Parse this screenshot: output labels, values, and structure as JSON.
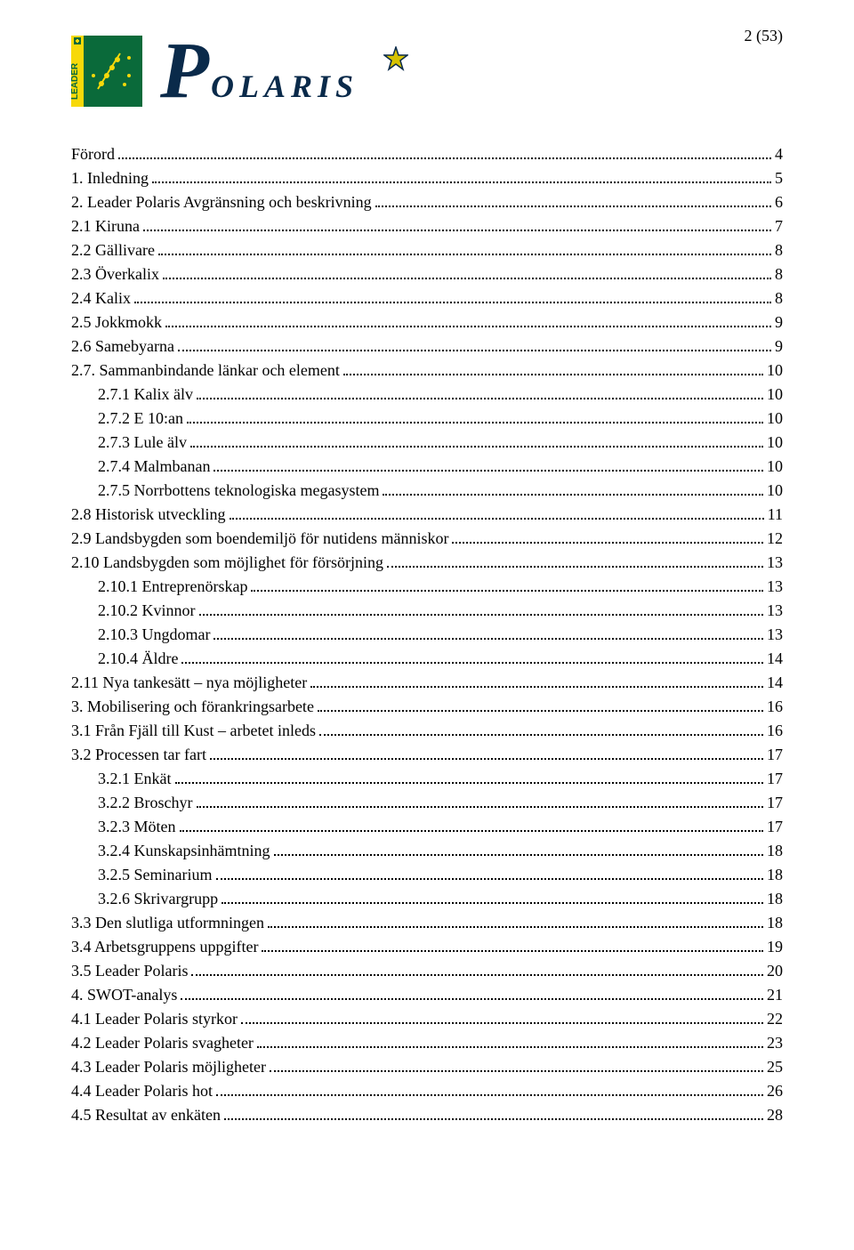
{
  "page_label": "2 (53)",
  "logos": {
    "leader_badge_bg": "#0a6a3a",
    "leader_badge_text": "LEADER",
    "leader_plus_bg": "#f7d90a",
    "polaris_text_big": "P",
    "polaris_text_rest": "OLARIS",
    "polaris_color": "#0a2a4a",
    "star_fill": "#d6c200",
    "star_outline": "#0a2a4a"
  },
  "toc": [
    {
      "indent": 1,
      "title": "Förord",
      "page": "4"
    },
    {
      "indent": 1,
      "title": "1. Inledning",
      "page": "5"
    },
    {
      "indent": 1,
      "title": "2. Leader Polaris Avgränsning och beskrivning",
      "page": "6"
    },
    {
      "indent": 1,
      "title": "2.1 Kiruna",
      "page": "7"
    },
    {
      "indent": 1,
      "title": "2.2 Gällivare",
      "page": "8"
    },
    {
      "indent": 1,
      "title": "2.3 Överkalix",
      "page": "8"
    },
    {
      "indent": 1,
      "title": "2.4 Kalix",
      "page": "8"
    },
    {
      "indent": 1,
      "title": "2.5 Jokkmokk",
      "page": "9"
    },
    {
      "indent": 1,
      "title": "2.6 Samebyarna",
      "page": "9"
    },
    {
      "indent": 1,
      "title": "2.7. Sammanbindande länkar och element",
      "page": "10"
    },
    {
      "indent": 2,
      "title": "2.7.1 Kalix älv",
      "page": "10"
    },
    {
      "indent": 2,
      "title": "2.7.2 E 10:an",
      "page": "10"
    },
    {
      "indent": 2,
      "title": "2.7.3 Lule älv",
      "page": "10"
    },
    {
      "indent": 2,
      "title": "2.7.4 Malmbanan",
      "page": "10"
    },
    {
      "indent": 2,
      "title": "2.7.5 Norrbottens teknologiska megasystem",
      "page": "10"
    },
    {
      "indent": 1,
      "title": "2.8 Historisk utveckling",
      "page": "11"
    },
    {
      "indent": 1,
      "title": "2.9 Landsbygden som boendemiljö för nutidens människor",
      "page": "12"
    },
    {
      "indent": 1,
      "title": "2.10 Landsbygden som möjlighet för försörjning",
      "page": "13"
    },
    {
      "indent": 2,
      "title": "2.10.1 Entreprenörskap",
      "page": "13"
    },
    {
      "indent": 2,
      "title": "2.10.2 Kvinnor",
      "page": "13"
    },
    {
      "indent": 2,
      "title": "2.10.3 Ungdomar",
      "page": "13"
    },
    {
      "indent": 2,
      "title": "2.10.4 Äldre",
      "page": "14"
    },
    {
      "indent": 1,
      "title": "2.11 Nya tankesätt – nya möjligheter",
      "page": "14"
    },
    {
      "indent": 1,
      "title": "3. Mobilisering och förankringsarbete",
      "page": "16"
    },
    {
      "indent": 1,
      "title": "3.1 Från Fjäll till Kust – arbetet inleds",
      "page": "16"
    },
    {
      "indent": 1,
      "title": "3.2 Processen tar fart",
      "page": "17"
    },
    {
      "indent": 2,
      "title": "3.2.1 Enkät",
      "page": "17"
    },
    {
      "indent": 2,
      "title": "3.2.2 Broschyr",
      "page": "17"
    },
    {
      "indent": 2,
      "title": "3.2.3 Möten",
      "page": "17"
    },
    {
      "indent": 2,
      "title": "3.2.4 Kunskapsinhämtning",
      "page": "18"
    },
    {
      "indent": 2,
      "title": "3.2.5 Seminarium",
      "page": "18"
    },
    {
      "indent": 2,
      "title": "3.2.6 Skrivargrupp",
      "page": "18"
    },
    {
      "indent": 1,
      "title": "3.3 Den slutliga utformningen",
      "page": "18"
    },
    {
      "indent": 1,
      "title": "3.4 Arbetsgruppens uppgifter",
      "page": "19"
    },
    {
      "indent": 1,
      "title": "3.5 Leader Polaris",
      "page": "20"
    },
    {
      "indent": 1,
      "title": "4. SWOT-analys",
      "page": "21"
    },
    {
      "indent": 1,
      "title": "4.1 Leader Polaris styrkor",
      "page": "22"
    },
    {
      "indent": 1,
      "title": "4.2 Leader Polaris svagheter",
      "page": "23"
    },
    {
      "indent": 1,
      "title": "4.3 Leader Polaris möjligheter",
      "page": "25"
    },
    {
      "indent": 1,
      "title": "4.4 Leader Polaris hot",
      "page": "26"
    },
    {
      "indent": 1,
      "title": "4.5 Resultat av enkäten",
      "page": "28"
    }
  ]
}
